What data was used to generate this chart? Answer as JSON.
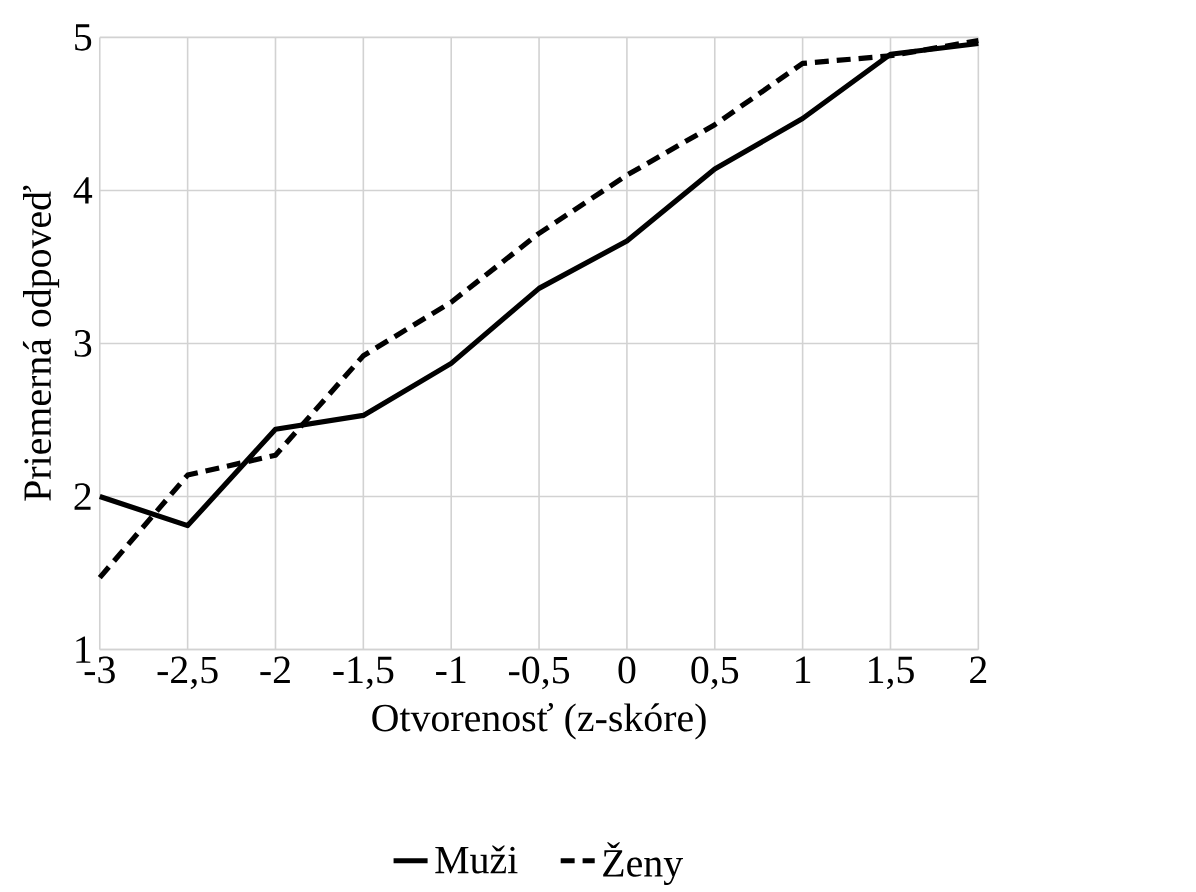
{
  "chart_data": {
    "type": "line",
    "xlabel": "Otvorenosť (z-skóre)",
    "ylabel": "Priemerná odpoveď",
    "x": [
      -3,
      -2.5,
      -2,
      -1.5,
      -1,
      -0.5,
      0,
      0.5,
      1,
      1.5,
      2
    ],
    "series": [
      {
        "name": "Muži",
        "color": "#000000",
        "line_style": "solid",
        "values": [
          2.0,
          1.81,
          2.44,
          2.53,
          2.87,
          3.36,
          3.67,
          4.14,
          4.47,
          4.89,
          4.96
        ]
      },
      {
        "name": "Ženy",
        "color": "#000000",
        "line_style": "dashed",
        "values": [
          1.47,
          2.14,
          2.27,
          2.92,
          3.27,
          3.72,
          4.1,
          4.43,
          4.83,
          4.88,
          4.98
        ]
      }
    ],
    "xlim": [
      -3,
      2
    ],
    "ylim": [
      1,
      5
    ],
    "xticks": [
      {
        "value": -3,
        "label": "-3"
      },
      {
        "value": -2.5,
        "label": "-2,5"
      },
      {
        "value": -2,
        "label": "-2"
      },
      {
        "value": -1.5,
        "label": "-1,5"
      },
      {
        "value": -1,
        "label": "-1"
      },
      {
        "value": -0.5,
        "label": "-0,5"
      },
      {
        "value": 0,
        "label": "0"
      },
      {
        "value": 0.5,
        "label": "0,5"
      },
      {
        "value": 1,
        "label": "1"
      },
      {
        "value": 1.5,
        "label": "1,5"
      },
      {
        "value": 2,
        "label": "2"
      }
    ],
    "yticks": [
      1,
      2,
      3,
      4,
      5
    ],
    "grid": true,
    "legend": "bottom",
    "marker": "none"
  }
}
